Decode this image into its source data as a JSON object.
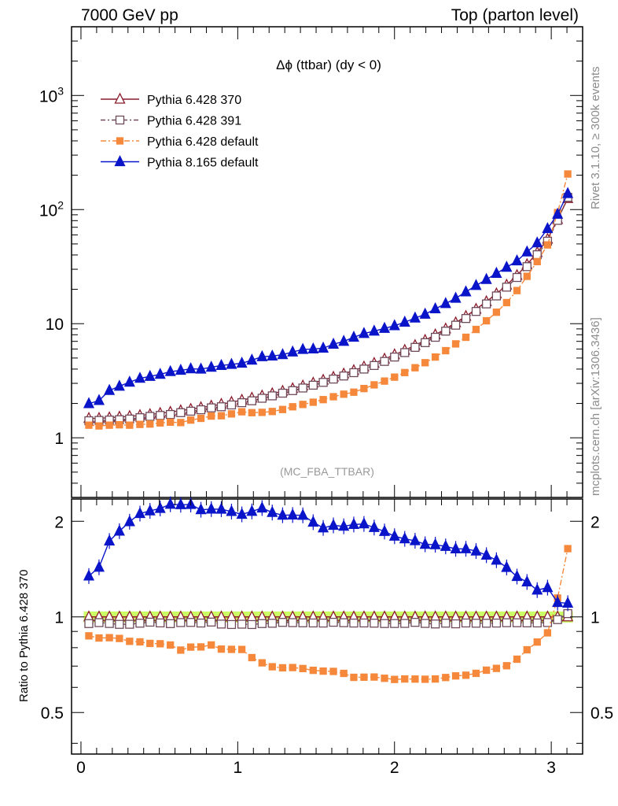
{
  "header": {
    "left": "7000 GeV pp",
    "right": "Top (parton level)"
  },
  "side_labels": {
    "rivet": "Rivet 3.1.10, ≥ 300k events",
    "mcplots": "mcplots.cern.ch [arXiv:1306.3436]"
  },
  "chart_data": {
    "type": "line",
    "title": "Δϕ (ttbar) (dy < 0)",
    "watermark": "(MC_FBA_TTBAR)",
    "ratio_ylabel": "Ratio to Pythia 6.428 370",
    "x": [
      0.0503,
      0.1153,
      0.1813,
      0.2453,
      0.3103,
      0.3763,
      0.4403,
      0.5053,
      0.5703,
      0.6363,
      0.7003,
      0.7653,
      0.8313,
      0.8953,
      0.9603,
      1.0263,
      1.0903,
      1.1553,
      1.2203,
      1.2863,
      1.3503,
      1.4153,
      1.4813,
      1.5453,
      1.6103,
      1.6763,
      1.7403,
      1.8053,
      1.8703,
      1.9363,
      2.0003,
      2.0653,
      2.1313,
      2.1953,
      2.2603,
      2.3263,
      2.3903,
      2.4553,
      2.5203,
      2.5863,
      2.6503,
      2.7153,
      2.7813,
      2.8453,
      2.9103,
      2.9763,
      3.0403,
      3.1053
    ],
    "main_axes": {
      "xlim": [
        -0.06,
        3.2
      ],
      "ylim": [
        0.3,
        4000
      ],
      "log_y": true,
      "y_ticks": [
        {
          "value": 1,
          "label": "1"
        },
        {
          "value": 10,
          "label": "10"
        },
        {
          "value": 100,
          "label": "10²"
        },
        {
          "value": 1000,
          "label": "10³"
        }
      ]
    },
    "ratio_axes": {
      "xlim": [
        -0.06,
        3.2
      ],
      "ylim": [
        0.37,
        2.35
      ],
      "log_y": true,
      "y_ticks": [
        {
          "value": 0.5,
          "label": "0.5"
        },
        {
          "value": 1,
          "label": "1"
        },
        {
          "value": 2,
          "label": "2"
        }
      ],
      "x_ticks": [
        {
          "value": 0,
          "label": "0"
        },
        {
          "value": 1,
          "label": "1"
        },
        {
          "value": 2,
          "label": "2"
        },
        {
          "value": 3,
          "label": "3"
        }
      ],
      "band": [
        0.96,
        1.04
      ]
    },
    "legend_position": "top-left",
    "series": [
      {
        "name": "Pythia 6.428 370",
        "color": "#8b1a2a",
        "marker": "triangle-open",
        "dash": "",
        "values": [
          1.48,
          1.48,
          1.5,
          1.52,
          1.54,
          1.57,
          1.6,
          1.64,
          1.68,
          1.73,
          1.78,
          1.84,
          1.9,
          1.97,
          2.05,
          2.14,
          2.23,
          2.33,
          2.44,
          2.56,
          2.7,
          2.85,
          3.02,
          3.2,
          3.4,
          3.63,
          3.89,
          4.18,
          4.5,
          4.9,
          5.35,
          5.85,
          6.45,
          7.15,
          8.0,
          9.0,
          10.2,
          11.6,
          13.4,
          15.6,
          18.3,
          21.8,
          26.5,
          33,
          42,
          55,
          82,
          125
        ]
      },
      {
        "name": "Pythia 6.428 391",
        "color": "#6e4a5a",
        "marker": "square-open",
        "dash": "6,3,2,3",
        "values": [
          1.41,
          1.42,
          1.43,
          1.44,
          1.46,
          1.5,
          1.54,
          1.57,
          1.6,
          1.66,
          1.71,
          1.76,
          1.83,
          1.87,
          1.94,
          2.03,
          2.11,
          2.22,
          2.33,
          2.46,
          2.59,
          2.73,
          2.89,
          3.06,
          3.27,
          3.48,
          3.72,
          4.0,
          4.3,
          4.67,
          5.1,
          5.58,
          6.2,
          6.82,
          7.6,
          8.6,
          9.7,
          11.1,
          12.8,
          14.9,
          17.5,
          20.9,
          25.4,
          31.6,
          40.2,
          52.8,
          80.4,
          128
        ]
      },
      {
        "name": "Pythia 6.428 default",
        "color": "#f5883a",
        "marker": "square-filled",
        "dash": "7,3,2,3",
        "values": [
          1.29,
          1.27,
          1.29,
          1.3,
          1.29,
          1.31,
          1.32,
          1.35,
          1.37,
          1.36,
          1.43,
          1.48,
          1.55,
          1.56,
          1.62,
          1.69,
          1.66,
          1.67,
          1.7,
          1.77,
          1.87,
          1.96,
          2.05,
          2.16,
          2.29,
          2.41,
          2.51,
          2.7,
          2.91,
          3.14,
          3.4,
          3.73,
          4.11,
          4.55,
          5.1,
          5.8,
          6.65,
          7.6,
          8.9,
          10.6,
          12.6,
          15.3,
          19.5,
          26,
          35,
          49,
          94,
          205
        ]
      },
      {
        "name": "Pythia 8.165 default",
        "color": "#0a14c8",
        "marker": "triangle-filled",
        "dash": "",
        "values": [
          1.99,
          2.12,
          2.6,
          2.83,
          3.07,
          3.32,
          3.45,
          3.6,
          3.8,
          3.9,
          4.02,
          4.0,
          4.15,
          4.3,
          4.4,
          4.5,
          4.79,
          5.13,
          5.2,
          5.35,
          5.65,
          5.95,
          6.0,
          6.1,
          6.6,
          7.0,
          7.6,
          8.2,
          8.6,
          9.1,
          9.6,
          10.3,
          11.2,
          12.1,
          13.5,
          15.0,
          16.7,
          19.0,
          21.6,
          24.4,
          27.6,
          31.2,
          35.5,
          42.5,
          51,
          68,
          91,
          138
        ]
      }
    ]
  }
}
